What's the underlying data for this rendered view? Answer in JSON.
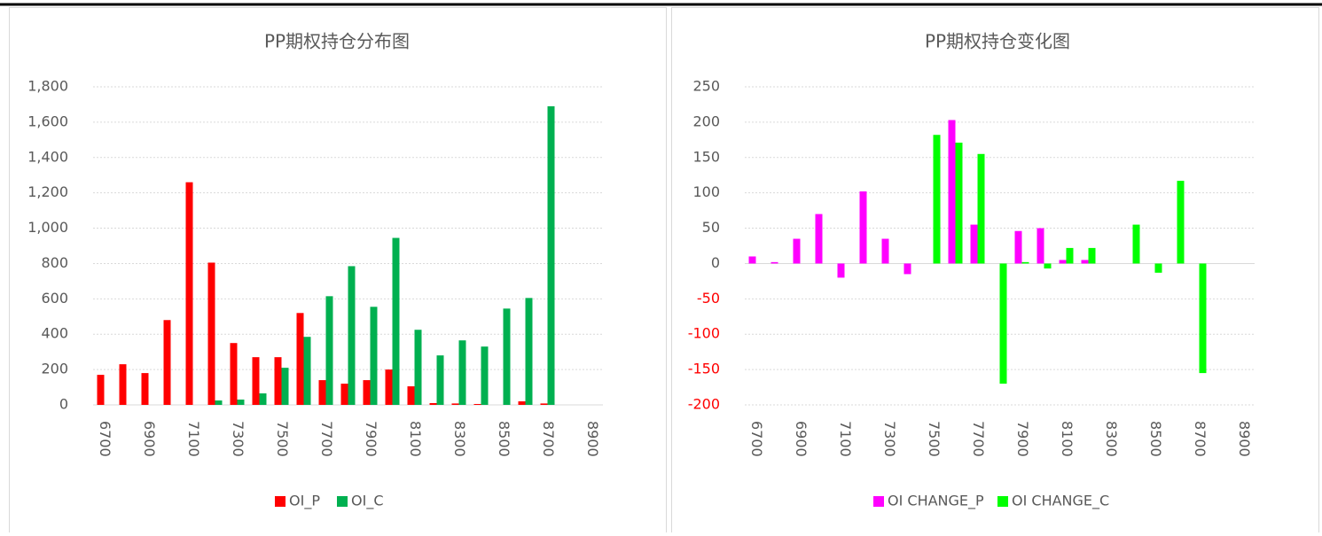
{
  "chart_data": [
    {
      "type": "bar",
      "title": "PP期权持仓分布图",
      "categories": [
        "6700",
        null,
        "6900",
        null,
        "7100",
        null,
        "7300",
        null,
        "7500",
        null,
        "7700",
        null,
        "7900",
        null,
        "8100",
        null,
        "8300",
        null,
        "8500",
        null,
        "8700",
        null,
        "8900"
      ],
      "series": [
        {
          "name": "OI_P",
          "color": "#ff0000",
          "values": [
            170,
            230,
            180,
            480,
            1260,
            805,
            350,
            270,
            270,
            520,
            140,
            120,
            140,
            200,
            105,
            10,
            8,
            5,
            0,
            20,
            8,
            0,
            0
          ]
        },
        {
          "name": "OI_C",
          "color": "#00b050",
          "values": [
            0,
            0,
            0,
            0,
            0,
            25,
            30,
            65,
            210,
            385,
            615,
            785,
            555,
            945,
            425,
            280,
            365,
            330,
            545,
            605,
            1690,
            0,
            0
          ]
        }
      ],
      "ylim": [
        0,
        1800
      ],
      "yticks": [
        0,
        200,
        400,
        600,
        800,
        {
          "value": 1000,
          "label": "1,000"
        },
        {
          "value": 1200,
          "label": "1,200"
        },
        {
          "value": 1400,
          "label": "1,400"
        },
        {
          "value": 1600,
          "label": "1,600"
        },
        {
          "value": 1800,
          "label": "1,800"
        }
      ],
      "grid": true,
      "legend": "bottom"
    },
    {
      "type": "bar",
      "title": "PP期权持仓变化图",
      "categories": [
        "6700",
        null,
        "6900",
        null,
        "7100",
        null,
        "7300",
        null,
        "7500",
        null,
        "7700",
        null,
        "7900",
        null,
        "8100",
        null,
        "8300",
        null,
        "8500",
        null,
        "8700",
        null,
        "8900"
      ],
      "series": [
        {
          "name": "OI CHANGE_P",
          "color": "#ff00ff",
          "values": [
            10,
            2,
            35,
            70,
            -20,
            102,
            35,
            -15,
            0,
            203,
            55,
            0,
            46,
            50,
            5,
            5,
            0,
            0,
            0,
            0,
            0,
            0,
            0
          ]
        },
        {
          "name": "OI CHANGE_C",
          "color": "#00ff00",
          "values": [
            0,
            0,
            0,
            0,
            0,
            0,
            0,
            0,
            182,
            171,
            155,
            -170,
            2,
            -7,
            22,
            22,
            0,
            55,
            -13,
            117,
            -155,
            0,
            0
          ]
        }
      ],
      "ylim": [
        -200,
        250
      ],
      "yticks": [
        -200,
        -150,
        -100,
        -50,
        0,
        50,
        100,
        150,
        200,
        250
      ],
      "negative_tick_color": "#ff0000",
      "grid": true,
      "legend": "bottom"
    }
  ]
}
